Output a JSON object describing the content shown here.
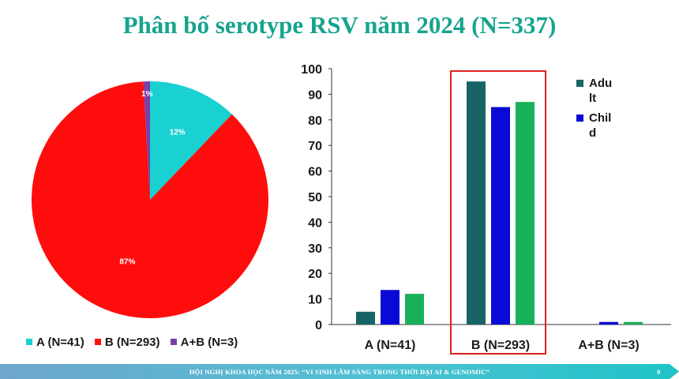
{
  "title": "Phân bố serotype RSV năm 2024 (N=337)",
  "footer": {
    "text": "HỘI NGHỊ KHOA HỌC NĂM 2025: “VI SINH LÂM SÀNG TRONG THỜI ĐẠI AI & GENOMIC”",
    "page": "9"
  },
  "chart_data": [
    {
      "type": "pie",
      "categories": [
        "A (N=41)",
        "B (N=293)",
        "A+B (N=3)"
      ],
      "values": [
        41,
        293,
        3
      ],
      "data_labels": [
        "12%",
        "87%",
        "1%"
      ],
      "colors": [
        "#19d1d1",
        "#ff0d0d",
        "#7b3fa8"
      ],
      "legend": "bottom"
    },
    {
      "type": "bar",
      "categories": [
        "A (N=41)",
        "B (N=293)",
        "A+B (N=3)"
      ],
      "series": [
        {
          "name": "Adult",
          "legend_lines": [
            "Adu",
            "lt"
          ],
          "color": "#186363",
          "values": [
            5,
            95,
            0
          ]
        },
        {
          "name": "Child",
          "legend_lines": [
            "Chil",
            "d"
          ],
          "color": "#0a0ad6",
          "values": [
            13.5,
            85,
            1
          ]
        },
        {
          "color": "#19b05a",
          "values": [
            12,
            87,
            1
          ]
        }
      ],
      "ylim": [
        0,
        100
      ],
      "yticks": [
        0,
        10,
        20,
        30,
        40,
        50,
        60,
        70,
        80,
        90,
        100
      ],
      "legend": "top-right",
      "highlight_category": "B (N=293)",
      "highlight_color": "#e02020",
      "grid": false
    }
  ]
}
